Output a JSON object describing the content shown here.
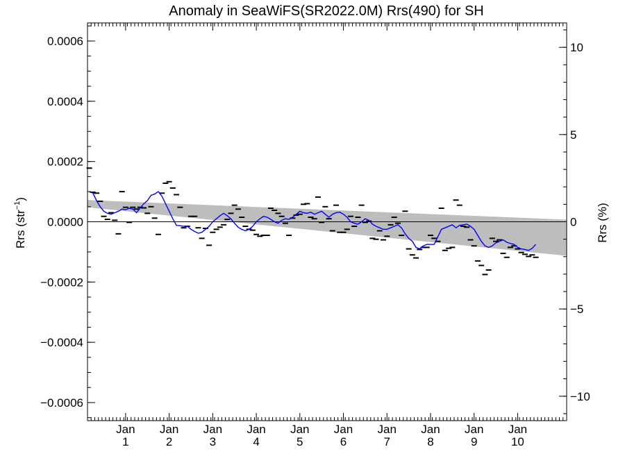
{
  "chart_data": {
    "type": "line",
    "title": "Anomaly in SeaWiFS(SR2022.0M) Rrs(490) for SH",
    "ylabel_left": "Rrs (str",
    "ylabel_left_sup": "−1",
    "ylabel_left_close": ")",
    "ylabel_right": "Rrs (%)",
    "x_range_months": [
      0,
      132
    ],
    "ylim_left": [
      -0.00066,
      0.00066
    ],
    "ylim_right": [
      -11.4,
      11.4
    ],
    "y_ticks_left": [
      {
        "value": 0.0006,
        "label": "0.0006"
      },
      {
        "value": 0.0004,
        "label": "0.0004"
      },
      {
        "value": 0.0002,
        "label": "0.0002"
      },
      {
        "value": 0.0,
        "label": "0.0000"
      },
      {
        "value": -0.0002,
        "label": "−0.0002"
      },
      {
        "value": -0.0004,
        "label": "−0.0004"
      },
      {
        "value": -0.0006,
        "label": "−0.0006"
      }
    ],
    "y_ticks_right": [
      {
        "value": 10,
        "label": "10"
      },
      {
        "value": 5,
        "label": "5"
      },
      {
        "value": 0,
        "label": "0"
      },
      {
        "value": -5,
        "label": "−5"
      },
      {
        "value": -10,
        "label": "−10"
      }
    ],
    "x_ticks": [
      {
        "month": 10.5,
        "line1": "Jan",
        "line2": "1"
      },
      {
        "month": 22.5,
        "line1": "Jan",
        "line2": "2"
      },
      {
        "month": 34.5,
        "line1": "Jan",
        "line2": "3"
      },
      {
        "month": 46.5,
        "line1": "Jan",
        "line2": "4"
      },
      {
        "month": 58.5,
        "line1": "Jan",
        "line2": "5"
      },
      {
        "month": 70.5,
        "line1": "Jan",
        "line2": "6"
      },
      {
        "month": 82.5,
        "line1": "Jan",
        "line2": "7"
      },
      {
        "month": 94.5,
        "line1": "Jan",
        "line2": "8"
      },
      {
        "month": 106.5,
        "line1": "Jan",
        "line2": "9"
      },
      {
        "month": 118.5,
        "line1": "Jan",
        "line2": "10"
      }
    ],
    "trend_band": {
      "upper": [
        [
          0,
          7.2e-05
        ],
        [
          132,
          7e-06
        ]
      ],
      "lower": [
        [
          0,
          4.8e-05
        ],
        [
          132,
          -0.000113
        ]
      ]
    },
    "zero_line": 0.0,
    "series": [
      {
        "role": "monthly",
        "color": "#000000",
        "points": [
          [
            0,
            0.000178
          ],
          [
            1,
            9.8e-05
          ],
          [
            2,
            9.5e-05
          ],
          [
            3,
            6.8e-05
          ],
          [
            4,
            1.8e-05
          ],
          [
            5,
            8e-06
          ],
          [
            6,
            3e-05
          ],
          [
            7,
            5e-06
          ],
          [
            8,
            -4e-05
          ],
          [
            9,
            0.0001
          ],
          [
            10,
            4.8e-05
          ],
          [
            11,
            -2e-06
          ],
          [
            12,
            4.8e-05
          ],
          [
            13,
            4.2e-05
          ],
          [
            14,
            4.8e-05
          ],
          [
            15,
            4.6e-05
          ],
          [
            16,
            2.8e-05
          ],
          [
            17,
            5e-05
          ],
          [
            18,
            1.2e-05
          ],
          [
            19,
            -4.2e-05
          ],
          [
            20,
            9.5e-05
          ],
          [
            21,
            0.000128
          ],
          [
            22,
            0.000133
          ],
          [
            23,
            0.000112
          ],
          [
            24,
            9e-05
          ],
          [
            25,
            4.8e-05
          ],
          [
            26,
            -2e-05
          ],
          [
            27,
            -1.5e-05
          ],
          [
            28,
            1.8e-05
          ],
          [
            29,
            1.8e-05
          ],
          [
            30,
            -2e-05
          ],
          [
            31,
            -5.5e-05
          ],
          [
            32,
            -2.2e-05
          ],
          [
            33,
            -7.8e-05
          ],
          [
            34,
            -3.5e-05
          ],
          [
            35,
            -2.5e-05
          ],
          [
            36,
            -1.8e-05
          ],
          [
            37,
            -1e-05
          ],
          [
            38,
            8e-06
          ],
          [
            39,
            2.8e-05
          ],
          [
            40,
            5.5e-05
          ],
          [
            41,
            4.2e-05
          ],
          [
            42,
            1.5e-05
          ],
          [
            43,
            -1.5e-05
          ],
          [
            44,
            -2.5e-05
          ],
          [
            45,
            -2.8e-05
          ],
          [
            46,
            -4.2e-05
          ],
          [
            47,
            -4.8e-05
          ],
          [
            48,
            -4.5e-05
          ],
          [
            49,
            -4.5e-05
          ],
          [
            50,
            4.5e-05
          ],
          [
            51,
            3.8e-05
          ],
          [
            52,
            2.8e-05
          ],
          [
            53,
            1.8e-05
          ],
          [
            54,
            -5e-06
          ],
          [
            55,
            -4.5e-05
          ],
          [
            56,
            1.2e-05
          ],
          [
            57,
            2.2e-05
          ],
          [
            58,
            2.5e-05
          ],
          [
            59,
            5.8e-05
          ],
          [
            60,
            6e-05
          ],
          [
            61,
            1.5e-05
          ],
          [
            62,
            1e-05
          ],
          [
            63,
            8.2e-05
          ],
          [
            64,
            -2e-06
          ],
          [
            65,
            5e-05
          ],
          [
            66,
            1e-05
          ],
          [
            67,
            -3e-05
          ],
          [
            68,
            5.5e-05
          ],
          [
            69,
            -3.5e-05
          ],
          [
            70,
            -3.5e-05
          ],
          [
            71,
            -2.5e-05
          ],
          [
            72,
            1.8e-05
          ],
          [
            73,
            -1.5e-05
          ],
          [
            74,
            1.5e-05
          ],
          [
            75,
            5.5e-05
          ],
          [
            76,
            -2e-06
          ],
          [
            77,
            2e-06
          ],
          [
            78,
            -5.5e-05
          ],
          [
            79,
            -5.8e-05
          ],
          [
            80,
            -3e-05
          ],
          [
            81,
            -6e-05
          ],
          [
            82,
            -4.8e-05
          ],
          [
            83,
            -1e-05
          ],
          [
            84,
            1.5e-05
          ],
          [
            85,
            -5e-06
          ],
          [
            86,
            -4.5e-05
          ],
          [
            87,
            3.5e-05
          ],
          [
            88,
            -9e-05
          ],
          [
            89,
            -0.00011
          ],
          [
            90,
            -0.00012
          ],
          [
            91,
            -9.2e-05
          ],
          [
            92,
            -8.5e-05
          ],
          [
            93,
            -8.5e-05
          ],
          [
            94,
            -4.5e-05
          ],
          [
            95,
            -5.5e-05
          ],
          [
            96,
            -6.5e-05
          ],
          [
            97,
            4.5e-05
          ],
          [
            98,
            -9.5e-05
          ],
          [
            99,
            -8.8e-05
          ],
          [
            100,
            -8.5e-05
          ],
          [
            101,
            7.2e-05
          ],
          [
            102,
            5.5e-05
          ],
          [
            103,
            -1.5e-05
          ],
          [
            104,
            -1.8e-05
          ],
          [
            105,
            -6e-05
          ],
          [
            106,
            -8e-05
          ],
          [
            107,
            -0.00013
          ],
          [
            108,
            -0.000145
          ],
          [
            109,
            -0.000175
          ],
          [
            110,
            -0.00016
          ],
          [
            111,
            -5.5e-05
          ],
          [
            112,
            -6.5e-05
          ],
          [
            113,
            -6e-05
          ],
          [
            114,
            -0.000105
          ],
          [
            115,
            -0.000118
          ],
          [
            116,
            -8.5e-05
          ],
          [
            117,
            -8e-05
          ],
          [
            118,
            -9e-05
          ],
          [
            119,
            -0.000102
          ],
          [
            120,
            -0.000108
          ],
          [
            121,
            -0.000115
          ],
          [
            122,
            -0.00011
          ],
          [
            123,
            -0.000118
          ]
        ]
      },
      {
        "role": "running_mean",
        "color": "#0000ff",
        "points": [
          [
            0,
            0.0001
          ],
          [
            1,
            9.5e-05
          ],
          [
            2,
            7e-05
          ],
          [
            3,
            5e-05
          ],
          [
            4,
            3.5e-05
          ],
          [
            5,
            2.8e-05
          ],
          [
            6,
            2.5e-05
          ],
          [
            7,
            3e-05
          ],
          [
            8,
            3.5e-05
          ],
          [
            9,
            4.2e-05
          ],
          [
            10,
            4e-05
          ],
          [
            11,
            4.5e-05
          ],
          [
            12,
            4.2e-05
          ],
          [
            13,
            3e-05
          ],
          [
            14,
            4.5e-05
          ],
          [
            15,
            6e-05
          ],
          [
            16,
            7e-05
          ],
          [
            17,
            8.8e-05
          ],
          [
            18,
            9.2e-05
          ],
          [
            19,
            0.0001
          ],
          [
            20,
            8.5e-05
          ],
          [
            21,
            6e-05
          ],
          [
            22,
            3.5e-05
          ],
          [
            23,
            1e-05
          ],
          [
            24,
            -1.2e-05
          ],
          [
            25,
            -1.3e-05
          ],
          [
            26,
            -1.5e-05
          ],
          [
            27,
            -1.5e-05
          ],
          [
            28,
            -2.5e-05
          ],
          [
            29,
            -3.2e-05
          ],
          [
            30,
            -3.8e-05
          ],
          [
            31,
            -3.5e-05
          ],
          [
            32,
            -2.5e-05
          ],
          [
            33,
            -1.5e-05
          ],
          [
            34,
            0.0
          ],
          [
            35,
            1e-05
          ],
          [
            36,
            2e-05
          ],
          [
            37,
            2.8e-05
          ],
          [
            38,
            2e-05
          ],
          [
            39,
            1e-05
          ],
          [
            40,
            -5e-06
          ],
          [
            41,
            -1.8e-05
          ],
          [
            42,
            -2.5e-05
          ],
          [
            43,
            -3e-05
          ],
          [
            44,
            -2.5e-05
          ],
          [
            45,
            -1.5e-05
          ],
          [
            46,
            0.0
          ],
          [
            47,
            1e-05
          ],
          [
            48,
            1.8e-05
          ],
          [
            49,
            1.5e-05
          ],
          [
            50,
            8e-06
          ],
          [
            51,
            0.0
          ],
          [
            52,
            -5e-06
          ],
          [
            53,
            5e-06
          ],
          [
            54,
            1e-05
          ],
          [
            55,
            8e-06
          ],
          [
            56,
            1.5e-05
          ],
          [
            57,
            2.5e-05
          ],
          [
            58,
            3.5e-05
          ],
          [
            59,
            3e-05
          ],
          [
            60,
            2.8e-05
          ],
          [
            61,
            3.2e-05
          ],
          [
            62,
            2.5e-05
          ],
          [
            63,
            3e-05
          ],
          [
            64,
            3.5e-05
          ],
          [
            65,
            2.5e-05
          ],
          [
            66,
            1.5e-05
          ],
          [
            67,
            2.5e-05
          ],
          [
            68,
            3e-05
          ],
          [
            69,
            3.2e-05
          ],
          [
            70,
            2.5e-05
          ],
          [
            71,
            1.5e-05
          ],
          [
            72,
            0.0
          ],
          [
            73,
            -5e-06
          ],
          [
            74,
            -8e-06
          ],
          [
            75,
            0.0
          ],
          [
            76,
            1e-05
          ],
          [
            77,
            5e-06
          ],
          [
            78,
            -8e-06
          ],
          [
            79,
            -1.5e-05
          ],
          [
            80,
            -2e-05
          ],
          [
            81,
            -2.5e-05
          ],
          [
            82,
            -2.5e-05
          ],
          [
            83,
            -2e-05
          ],
          [
            84,
            -1.5e-05
          ],
          [
            85,
            -1e-05
          ],
          [
            86,
            -2e-05
          ],
          [
            87,
            -4e-05
          ],
          [
            88,
            -5.5e-05
          ],
          [
            89,
            -6.5e-05
          ],
          [
            90,
            -8.5e-05
          ],
          [
            91,
            -9e-05
          ],
          [
            92,
            -8e-05
          ],
          [
            93,
            -7.5e-05
          ],
          [
            94,
            -7.5e-05
          ],
          [
            95,
            -7.5e-05
          ],
          [
            96,
            -5e-05
          ],
          [
            97,
            -2.5e-05
          ],
          [
            98,
            -2e-05
          ],
          [
            99,
            -1.5e-05
          ],
          [
            100,
            -1e-05
          ],
          [
            101,
            -2e-05
          ],
          [
            102,
            -1.2e-05
          ],
          [
            103,
            -1e-05
          ],
          [
            104,
            -8e-06
          ],
          [
            105,
            -1.5e-05
          ],
          [
            106,
            -2.5e-05
          ],
          [
            107,
            -4.5e-05
          ],
          [
            108,
            -6.5e-05
          ],
          [
            109,
            -8e-05
          ],
          [
            110,
            -8.5e-05
          ],
          [
            111,
            -8e-05
          ],
          [
            112,
            -7e-05
          ],
          [
            113,
            -6.5e-05
          ],
          [
            114,
            -6e-05
          ],
          [
            115,
            -6.8e-05
          ],
          [
            116,
            -7.2e-05
          ],
          [
            117,
            -7.5e-05
          ],
          [
            118,
            -8.5e-05
          ],
          [
            119,
            -9e-05
          ],
          [
            120,
            -9.2e-05
          ],
          [
            121,
            -9.5e-05
          ],
          [
            122,
            -8.8e-05
          ],
          [
            123,
            -7.5e-05
          ]
        ]
      }
    ],
    "grid": false,
    "legend": "none"
  }
}
